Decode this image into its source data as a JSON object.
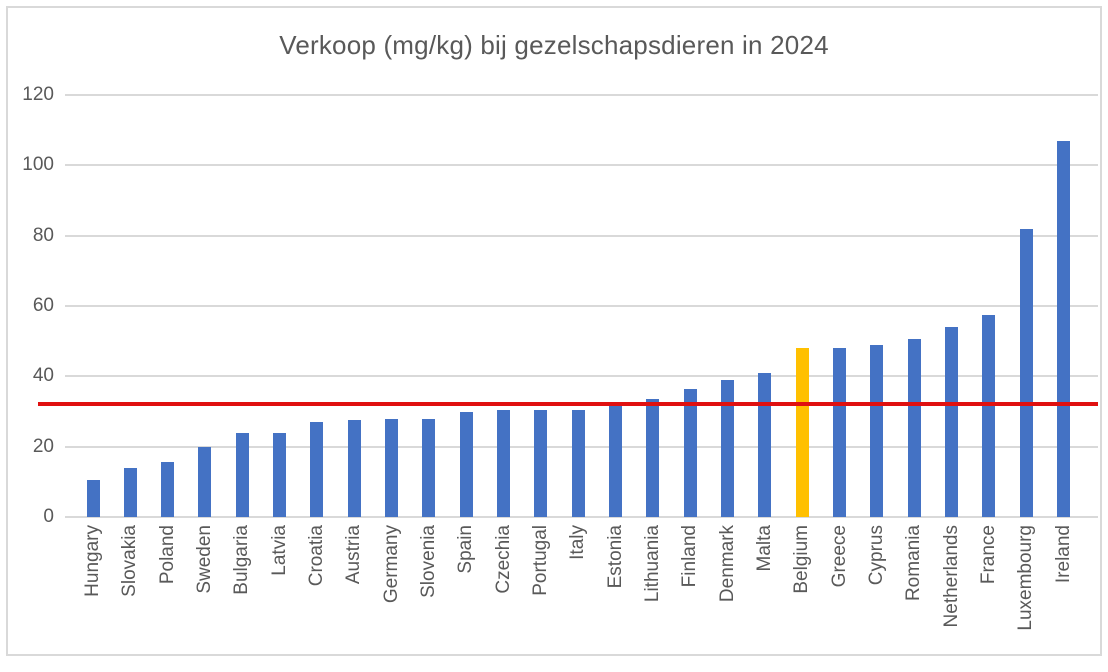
{
  "chart_data": {
    "type": "bar",
    "title": "Verkoop (mg/kg) bij gezelschapsdieren in 2024",
    "categories": [
      "Hungary",
      "Slovakia",
      "Poland",
      "Sweden",
      "Bulgaria",
      "Latvia",
      "Croatia",
      "Austria",
      "Germany",
      "Slovenia",
      "Spain",
      "Czechia",
      "Portugal",
      "Italy",
      "Estonia",
      "Lithuania",
      "Finland",
      "Denmark",
      "Malta",
      "Belgium",
      "Greece",
      "Cyprus",
      "Romania",
      "Netherlands",
      "France",
      "Luxembourg",
      "Ireland"
    ],
    "values": [
      10.5,
      14,
      15.5,
      20,
      24,
      24,
      27,
      27.5,
      28,
      28,
      30,
      30.5,
      30.5,
      30.5,
      31.5,
      33.5,
      36.5,
      39,
      41,
      48,
      48,
      49,
      50.5,
      54,
      57.5,
      82,
      107
    ],
    "xlabel": "",
    "ylabel": "",
    "ylim": [
      0,
      120
    ],
    "yticks": [
      0,
      20,
      40,
      60,
      80,
      100,
      120
    ],
    "grid": true,
    "legend": "none",
    "bar_color": "#4472C4",
    "highlight": {
      "category": "Belgium",
      "index": 19,
      "color": "#FFC000"
    },
    "reference_line": {
      "value": 32,
      "color": "#E01010"
    },
    "text_color": "#595959",
    "gridline_color": "#D9D9D9",
    "axis_color": "#D9D9D9",
    "frame_color": "#D9D9D9",
    "background": "#FFFFFF"
  }
}
